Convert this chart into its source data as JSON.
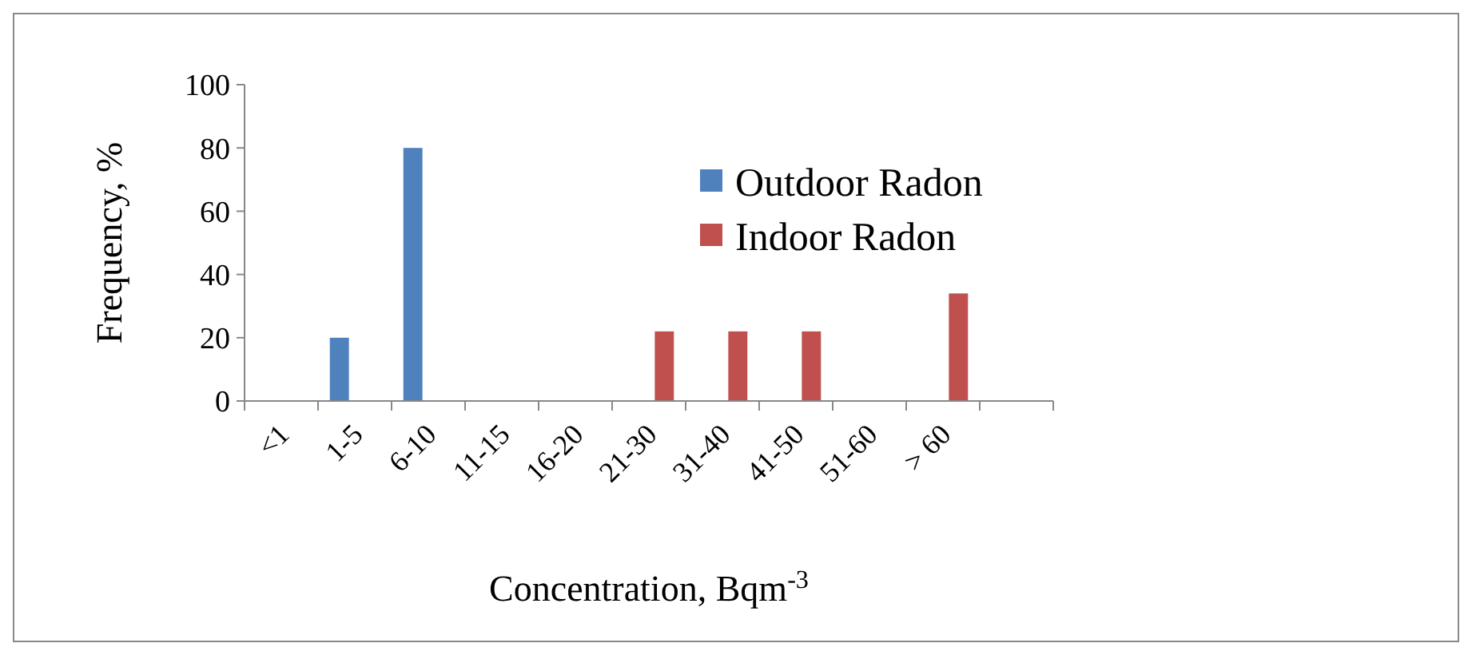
{
  "chart_data": {
    "type": "bar",
    "xlabel": "Concentration, Bqm$^{-3}$",
    "ylabel": "Frequency, %",
    "categories": [
      "<1",
      "1-5",
      "6-10",
      "11-15",
      "16-20",
      "21-30",
      "31-40",
      "41-50",
      "51-60",
      "> 60",
      null
    ],
    "series": [
      {
        "name": "Outdoor Radon",
        "color": "#4f81bd",
        "values": [
          null,
          20,
          80,
          null,
          null,
          null,
          null,
          null,
          null,
          null,
          null
        ]
      },
      {
        "name": "Indoor Radon",
        "color": "#c0504d",
        "values": [
          null,
          null,
          null,
          null,
          null,
          22,
          22,
          22,
          null,
          34,
          null
        ]
      }
    ],
    "ylim": [
      0,
      100
    ],
    "yticks": [
      0,
      20,
      40,
      60,
      80,
      100
    ],
    "grid": false,
    "legend": "right"
  }
}
